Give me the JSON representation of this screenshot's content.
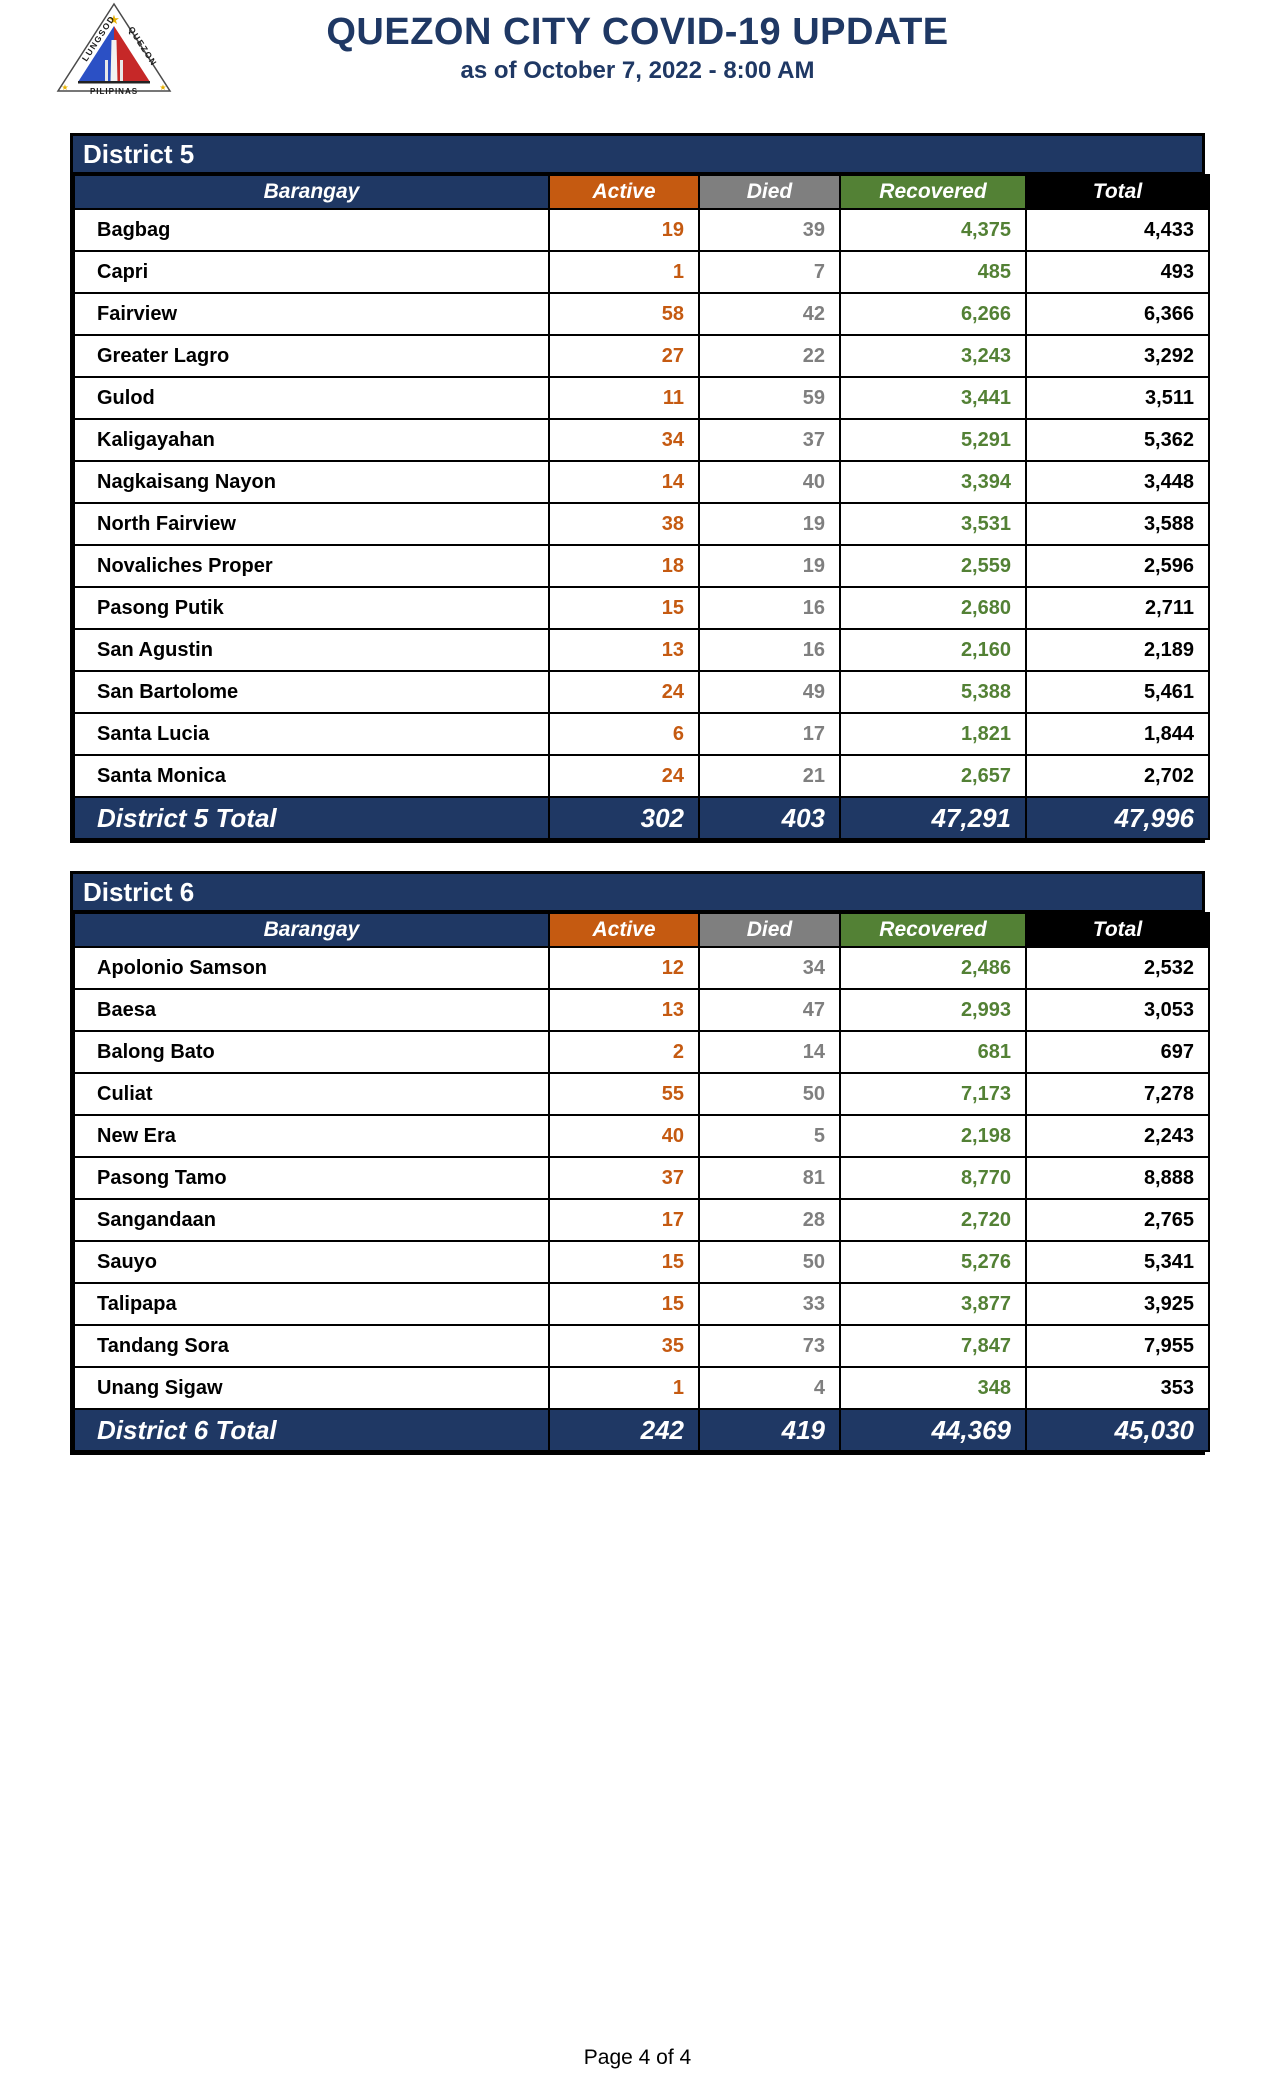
{
  "page": {
    "title": "QUEZON CITY COVID-19 UPDATE",
    "subtitle": "as of October 7, 2022 - 8:00 AM",
    "footer": "Page 4 of 4"
  },
  "logo": {
    "left_text": "LUNGSOD",
    "right_text": "QUEZON",
    "bottom_text": "PILIPINAS"
  },
  "colors": {
    "navy": "#1F3864",
    "orange": "#C55A11",
    "gray": "#7F7F7F",
    "green": "#538135",
    "black": "#000000",
    "row_blue": "#BDD7EE"
  },
  "columns": [
    "Barangay",
    "Active",
    "Died",
    "Recovered",
    "Total"
  ],
  "tables": [
    {
      "district": "District 5",
      "rows": [
        {
          "name": "Bagbag",
          "active": "19",
          "died": "39",
          "recovered": "4,375",
          "total": "4,433"
        },
        {
          "name": "Capri",
          "active": "1",
          "died": "7",
          "recovered": "485",
          "total": "493"
        },
        {
          "name": "Fairview",
          "active": "58",
          "died": "42",
          "recovered": "6,266",
          "total": "6,366"
        },
        {
          "name": "Greater Lagro",
          "active": "27",
          "died": "22",
          "recovered": "3,243",
          "total": "3,292"
        },
        {
          "name": "Gulod",
          "active": "11",
          "died": "59",
          "recovered": "3,441",
          "total": "3,511"
        },
        {
          "name": "Kaligayahan",
          "active": "34",
          "died": "37",
          "recovered": "5,291",
          "total": "5,362"
        },
        {
          "name": "Nagkaisang Nayon",
          "active": "14",
          "died": "40",
          "recovered": "3,394",
          "total": "3,448"
        },
        {
          "name": "North Fairview",
          "active": "38",
          "died": "19",
          "recovered": "3,531",
          "total": "3,588"
        },
        {
          "name": "Novaliches Proper",
          "active": "18",
          "died": "19",
          "recovered": "2,559",
          "total": "2,596"
        },
        {
          "name": "Pasong Putik",
          "active": "15",
          "died": "16",
          "recovered": "2,680",
          "total": "2,711"
        },
        {
          "name": "San Agustin",
          "active": "13",
          "died": "16",
          "recovered": "2,160",
          "total": "2,189"
        },
        {
          "name": "San Bartolome",
          "active": "24",
          "died": "49",
          "recovered": "5,388",
          "total": "5,461"
        },
        {
          "name": "Santa Lucia",
          "active": "6",
          "died": "17",
          "recovered": "1,821",
          "total": "1,844"
        },
        {
          "name": "Santa Monica",
          "active": "24",
          "died": "21",
          "recovered": "2,657",
          "total": "2,702"
        }
      ],
      "total": {
        "label": "District 5 Total",
        "active": "302",
        "died": "403",
        "recovered": "47,291",
        "total": "47,996"
      }
    },
    {
      "district": "District 6",
      "rows": [
        {
          "name": "Apolonio Samson",
          "active": "12",
          "died": "34",
          "recovered": "2,486",
          "total": "2,532"
        },
        {
          "name": "Baesa",
          "active": "13",
          "died": "47",
          "recovered": "2,993",
          "total": "3,053"
        },
        {
          "name": "Balong Bato",
          "active": "2",
          "died": "14",
          "recovered": "681",
          "total": "697"
        },
        {
          "name": "Culiat",
          "active": "55",
          "died": "50",
          "recovered": "7,173",
          "total": "7,278"
        },
        {
          "name": "New Era",
          "active": "40",
          "died": "5",
          "recovered": "2,198",
          "total": "2,243"
        },
        {
          "name": "Pasong Tamo",
          "active": "37",
          "died": "81",
          "recovered": "8,770",
          "total": "8,888"
        },
        {
          "name": "Sangandaan",
          "active": "17",
          "died": "28",
          "recovered": "2,720",
          "total": "2,765"
        },
        {
          "name": "Sauyo",
          "active": "15",
          "died": "50",
          "recovered": "5,276",
          "total": "5,341"
        },
        {
          "name": "Talipapa",
          "active": "15",
          "died": "33",
          "recovered": "3,877",
          "total": "3,925"
        },
        {
          "name": "Tandang Sora",
          "active": "35",
          "died": "73",
          "recovered": "7,847",
          "total": "7,955"
        },
        {
          "name": "Unang Sigaw",
          "active": "1",
          "died": "4",
          "recovered": "348",
          "total": "353"
        }
      ],
      "total": {
        "label": "District 6 Total",
        "active": "242",
        "died": "419",
        "recovered": "44,369",
        "total": "45,030"
      }
    }
  ]
}
